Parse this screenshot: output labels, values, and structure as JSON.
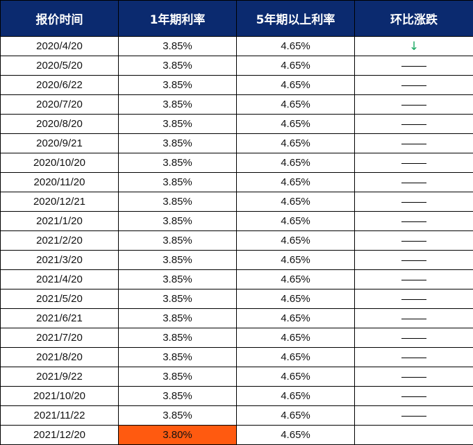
{
  "headers": [
    "报价时间",
    "1年期利率",
    "5年期以上利率",
    "环比涨跌"
  ],
  "rows": [
    {
      "date": "2020/4/20",
      "r1": "3.85%",
      "r5": "4.65%",
      "change": "down",
      "arrow": "↓"
    },
    {
      "date": "2020/5/20",
      "r1": "3.85%",
      "r5": "4.65%",
      "change": "flat"
    },
    {
      "date": "2020/6/22",
      "r1": "3.85%",
      "r5": "4.65%",
      "change": "flat"
    },
    {
      "date": "2020/7/20",
      "r1": "3.85%",
      "r5": "4.65%",
      "change": "flat"
    },
    {
      "date": "2020/8/20",
      "r1": "3.85%",
      "r5": "4.65%",
      "change": "flat"
    },
    {
      "date": "2020/9/21",
      "r1": "3.85%",
      "r5": "4.65%",
      "change": "flat"
    },
    {
      "date": "2020/10/20",
      "r1": "3.85%",
      "r5": "4.65%",
      "change": "flat"
    },
    {
      "date": "2020/11/20",
      "r1": "3.85%",
      "r5": "4.65%",
      "change": "flat"
    },
    {
      "date": "2020/12/21",
      "r1": "3.85%",
      "r5": "4.65%",
      "change": "flat"
    },
    {
      "date": "2021/1/20",
      "r1": "3.85%",
      "r5": "4.65%",
      "change": "flat"
    },
    {
      "date": "2021/2/20",
      "r1": "3.85%",
      "r5": "4.65%",
      "change": "flat"
    },
    {
      "date": "2021/3/20",
      "r1": "3.85%",
      "r5": "4.65%",
      "change": "flat"
    },
    {
      "date": "2021/4/20",
      "r1": "3.85%",
      "r5": "4.65%",
      "change": "flat"
    },
    {
      "date": "2021/5/20",
      "r1": "3.85%",
      "r5": "4.65%",
      "change": "flat"
    },
    {
      "date": "2021/6/21",
      "r1": "3.85%",
      "r5": "4.65%",
      "change": "flat"
    },
    {
      "date": "2021/7/20",
      "r1": "3.85%",
      "r5": "4.65%",
      "change": "flat"
    },
    {
      "date": "2021/8/20",
      "r1": "3.85%",
      "r5": "4.65%",
      "change": "flat"
    },
    {
      "date": "2021/9/22",
      "r1": "3.85%",
      "r5": "4.65%",
      "change": "flat"
    },
    {
      "date": "2021/10/20",
      "r1": "3.85%",
      "r5": "4.65%",
      "change": "flat"
    },
    {
      "date": "2021/11/22",
      "r1": "3.85%",
      "r5": "4.65%",
      "change": "flat"
    },
    {
      "date": "2021/12/20",
      "r1": "3.80%",
      "r5": "4.65%",
      "change": "none",
      "highlight_r1": true
    }
  ],
  "colors": {
    "header_bg": "#0b2a6f",
    "header_text": "#ffffff",
    "highlight": "#ff5a10",
    "arrow_down": "#18a860"
  }
}
